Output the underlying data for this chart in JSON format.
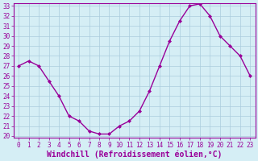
{
  "x": [
    0,
    1,
    2,
    3,
    4,
    5,
    6,
    7,
    8,
    9,
    10,
    11,
    12,
    13,
    14,
    15,
    16,
    17,
    18,
    19,
    20,
    21,
    22,
    23
  ],
  "y": [
    27,
    27.5,
    27,
    25.5,
    24,
    22,
    21.5,
    20.5,
    20.2,
    20.2,
    21,
    21.5,
    22.5,
    24.5,
    27,
    29.5,
    31.5,
    33,
    33.2,
    32,
    30,
    29,
    28,
    26
  ],
  "line_color": "#990099",
  "marker": "D",
  "marker_size": 2.0,
  "bg_color": "#d5eef5",
  "grid_color": "#aaccdd",
  "xlabel": "Windchill (Refroidissement éolien,°C)",
  "xlabel_color": "#990099",
  "tick_color": "#990099",
  "spine_color": "#990099",
  "ylim": [
    20,
    33
  ],
  "xlim": [
    -0.5,
    23.5
  ],
  "yticks": [
    20,
    21,
    22,
    23,
    24,
    25,
    26,
    27,
    28,
    29,
    30,
    31,
    32,
    33
  ],
  "xticks": [
    0,
    1,
    2,
    3,
    4,
    5,
    6,
    7,
    8,
    9,
    10,
    11,
    12,
    13,
    14,
    15,
    16,
    17,
    18,
    19,
    20,
    21,
    22,
    23
  ],
  "tick_fontsize": 5.5,
  "xlabel_fontsize": 7.0,
  "line_width": 1.0,
  "fig_width": 3.2,
  "fig_height": 2.0,
  "dpi": 100
}
